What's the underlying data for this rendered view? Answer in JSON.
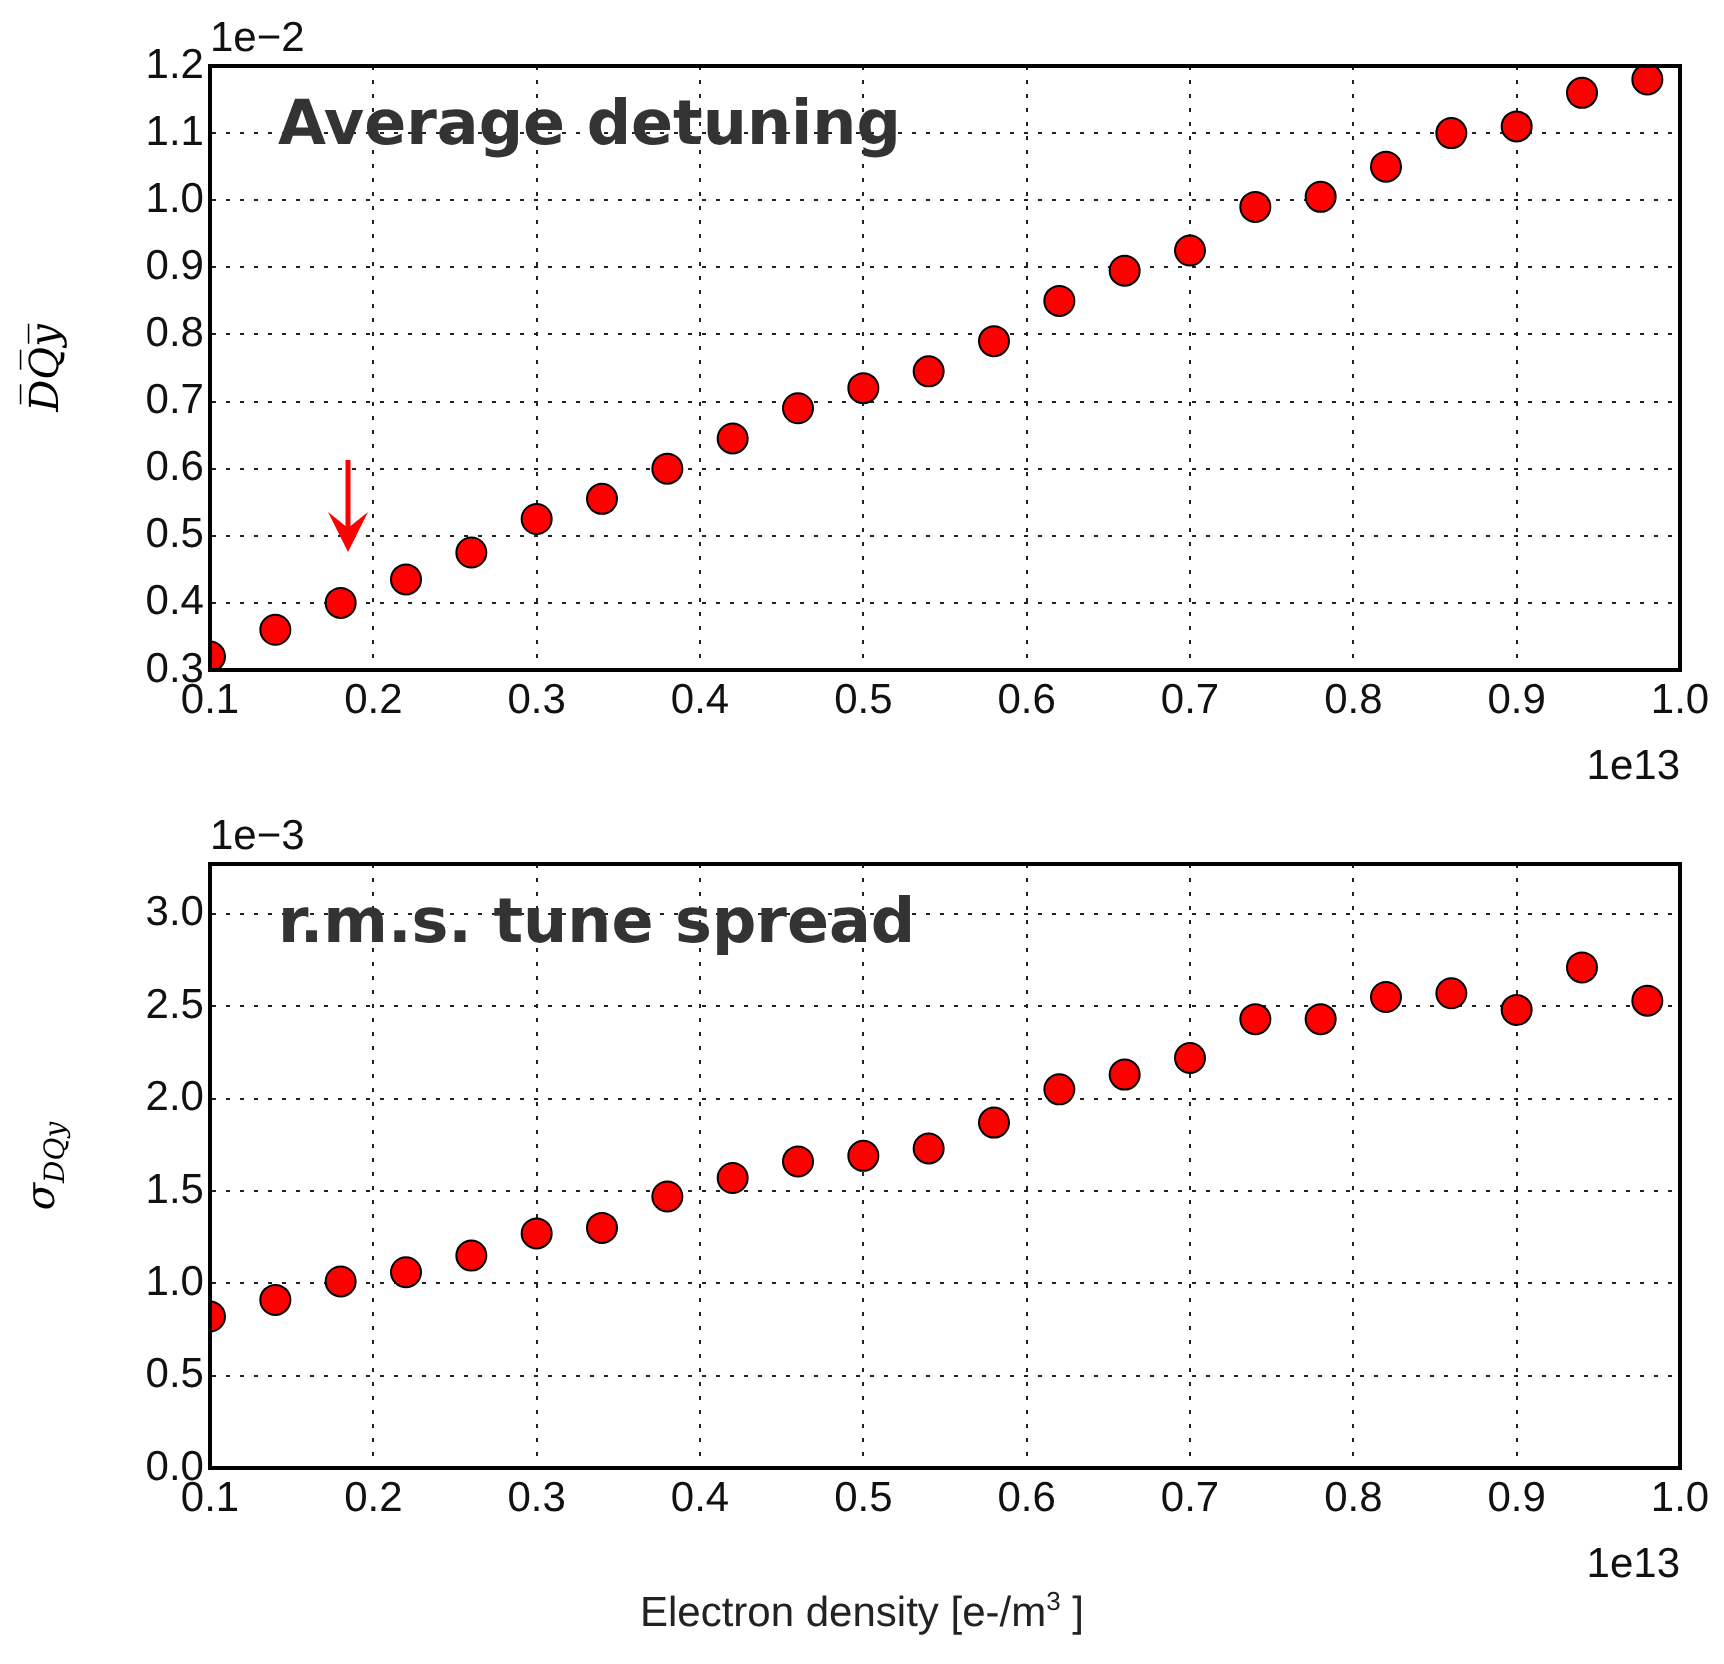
{
  "chart_data": [
    {
      "type": "scatter",
      "ylabel": "D̅Q̅y̅",
      "annotations": [
        "Average detuning",
        "1e−2",
        "1e13"
      ],
      "marker": "circle",
      "grid": true,
      "x": [
        0.1,
        0.14,
        0.18,
        0.22,
        0.26,
        0.3,
        0.34,
        0.38,
        0.42,
        0.46,
        0.5,
        0.54,
        0.58,
        0.62,
        0.66,
        0.7,
        0.74,
        0.78,
        0.82,
        0.86,
        0.9,
        0.94,
        0.98
      ],
      "series": [
        {
          "color": "#ff0000",
          "values": [
            0.32,
            0.36,
            0.4,
            0.435,
            0.475,
            0.525,
            0.555,
            0.6,
            0.645,
            0.69,
            0.72,
            0.745,
            0.79,
            0.85,
            0.895,
            0.925,
            0.99,
            1.005,
            1.05,
            1.1,
            1.11,
            1.16,
            1.18
          ]
        }
      ],
      "xlim": [
        0.1,
        1.0
      ],
      "xticks": [
        0.1,
        0.2,
        0.3,
        0.4,
        0.5,
        0.6,
        0.7,
        0.8,
        0.9,
        {
          "value": 1,
          "label": "1.0"
        }
      ],
      "ylim": [
        0.3,
        1.2
      ],
      "yticks": [
        0.3,
        0.4,
        0.5,
        0.6,
        0.7,
        0.8,
        0.9,
        {
          "value": 1,
          "label": "1.0"
        },
        1.1,
        1.2
      ]
    },
    {
      "type": "scatter",
      "xlabel": "Electron density [e-/m$^{3}$ ]",
      "ylabel": "σ$_{DQy}$",
      "annotations": [
        "r.m.s. tune spread",
        "1e−3",
        "1e13"
      ],
      "marker": "circle",
      "grid": true,
      "x": [
        0.1,
        0.14,
        0.18,
        0.22,
        0.26,
        0.3,
        0.34,
        0.38,
        0.42,
        0.46,
        0.5,
        0.54,
        0.58,
        0.62,
        0.66,
        0.7,
        0.74,
        0.78,
        0.82,
        0.86,
        0.9,
        0.94,
        0.98
      ],
      "series": [
        {
          "color": "#ff0000",
          "values": [
            0.82,
            0.91,
            1.01,
            1.06,
            1.15,
            1.27,
            1.3,
            1.47,
            1.57,
            1.66,
            1.69,
            1.73,
            1.87,
            2.05,
            2.13,
            2.22,
            2.43,
            2.43,
            2.55,
            2.57,
            2.48,
            2.71,
            2.53
          ]
        }
      ],
      "xlim": [
        0.1,
        1.0
      ],
      "xticks": [
        0.1,
        0.2,
        0.3,
        0.4,
        0.5,
        0.6,
        0.7,
        0.8,
        0.9,
        {
          "value": 1,
          "label": "1.0"
        }
      ],
      "ylim": [
        0,
        3.27
      ],
      "yticks": [
        {
          "value": 0,
          "label": "0.0"
        },
        0.5,
        {
          "value": 1,
          "label": "1.0"
        },
        1.5,
        {
          "value": 2,
          "label": "2.0"
        },
        2.5,
        {
          "value": 3,
          "label": "3.0"
        }
      ]
    }
  ]
}
